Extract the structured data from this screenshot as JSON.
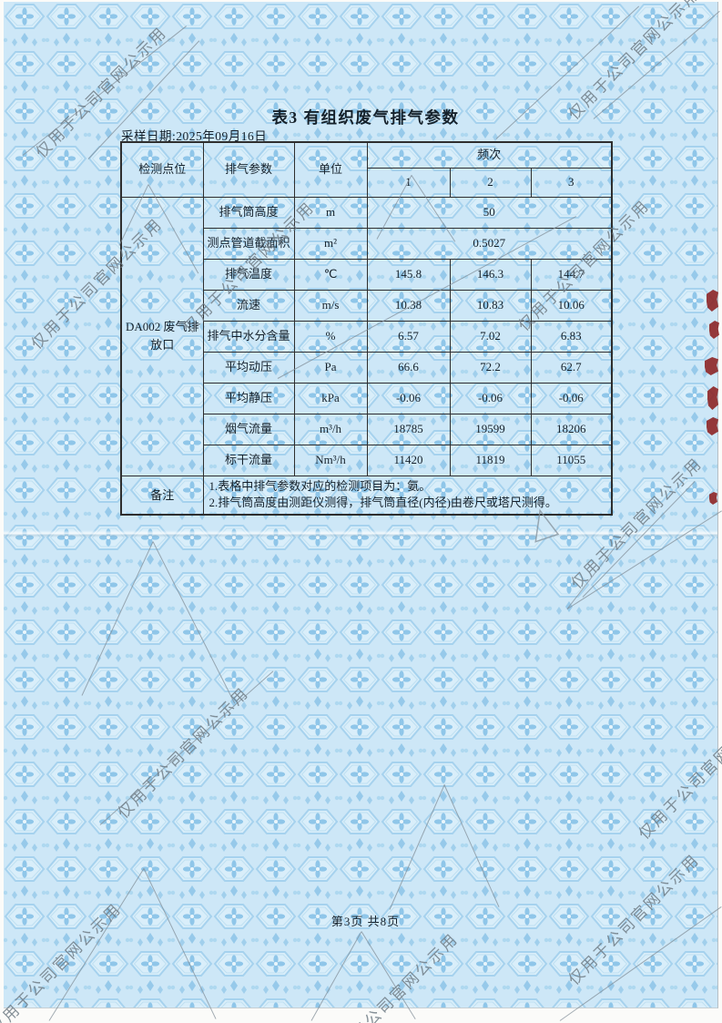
{
  "page": {
    "title": "表3  有组织废气排气参数",
    "sampling_date": "采样日期:2025年09月16日",
    "footer": "第3页 共8页",
    "watermark_text": "仅用于公司官网公示用"
  },
  "colors": {
    "paper_blue": "#cde7f7",
    "pattern_blue": "#8fc6e9",
    "table_line": "#2e2e2e",
    "text": "#15212b",
    "watermark_gray": "#707c86",
    "red_edge_mark": "#8c2020"
  },
  "table": {
    "headers": {
      "point": "检测点位",
      "parameter": "排气参数",
      "unit": "单位",
      "frequency": "频次",
      "runs": [
        "1",
        "2",
        "3"
      ]
    },
    "point_label": "DA002 废气排放口",
    "rows": [
      {
        "parameter": "排气筒高度",
        "unit": "m",
        "merged": true,
        "value": "50"
      },
      {
        "parameter": "测点管道截面积",
        "unit": "m²",
        "merged": true,
        "value": "0.5027"
      },
      {
        "parameter": "排气温度",
        "unit": "℃",
        "values": [
          "145.8",
          "146.3",
          "144.7"
        ]
      },
      {
        "parameter": "流速",
        "unit": "m/s",
        "values": [
          "10.38",
          "10.83",
          "10.06"
        ]
      },
      {
        "parameter": "排气中水分含量",
        "unit": "%",
        "values": [
          "6.57",
          "7.02",
          "6.83"
        ]
      },
      {
        "parameter": "平均动压",
        "unit": "Pa",
        "values": [
          "66.6",
          "72.2",
          "62.7"
        ]
      },
      {
        "parameter": "平均静压",
        "unit": "kPa",
        "values": [
          "-0.06",
          "-0.06",
          "-0.06"
        ]
      },
      {
        "parameter": "烟气流量",
        "unit": "m³/h",
        "values": [
          "18785",
          "19599",
          "18206"
        ]
      },
      {
        "parameter": "标干流量",
        "unit": "Nm³/h",
        "values": [
          "11420",
          "11819",
          "11055"
        ]
      }
    ],
    "remark_label": "备注",
    "remarks": [
      "1.表格中排气参数对应的检测项目为：氨。",
      "2.排气筒高度由测距仪测得，排气筒直径(内径)由卷尺或塔尺测得。"
    ]
  }
}
